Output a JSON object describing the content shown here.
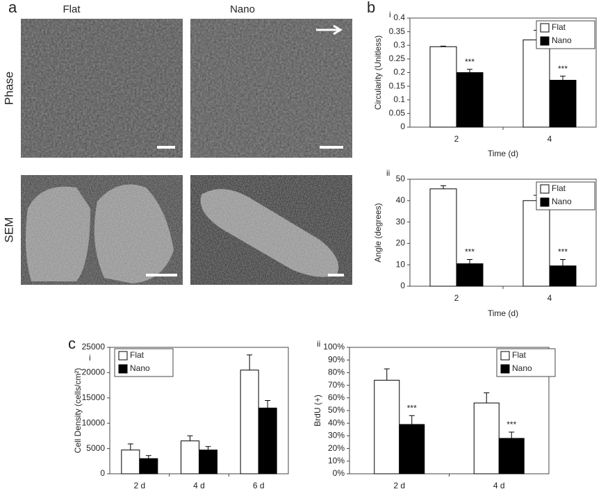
{
  "panel_labels": [
    "a",
    "b",
    "c"
  ],
  "image_columns": [
    "Flat",
    "Nano"
  ],
  "image_rows": [
    "Phase",
    "SEM"
  ],
  "chart_data": [
    {
      "type": "bar",
      "panel": "i",
      "ylabel": "Circularity (Unitless)",
      "xlabel": "Time (d)",
      "categories": [
        "2",
        "4"
      ],
      "ylim": [
        0,
        0.4
      ],
      "yticks": [
        0,
        0.05,
        0.1,
        0.15,
        0.2,
        0.25,
        0.3,
        0.35,
        0.4
      ],
      "series": [
        {
          "name": "Flat",
          "color": "#ffffff",
          "values": [
            0.295,
            0.32
          ],
          "errors": [
            0.002,
            0.035
          ]
        },
        {
          "name": "Nano",
          "color": "#000000",
          "values": [
            0.2,
            0.172
          ],
          "errors": [
            0.012,
            0.015
          ],
          "annotations": [
            "***",
            "***"
          ]
        }
      ]
    },
    {
      "type": "bar",
      "panel": "ii",
      "ylabel": "Angle (degrees)",
      "xlabel": "Time (d)",
      "categories": [
        "2",
        "4"
      ],
      "ylim": [
        0,
        50
      ],
      "yticks": [
        0,
        10,
        20,
        30,
        40,
        50
      ],
      "series": [
        {
          "name": "Flat",
          "color": "#ffffff",
          "values": [
            45.5,
            40
          ],
          "errors": [
            1.5,
            2.5
          ]
        },
        {
          "name": "Nano",
          "color": "#000000",
          "values": [
            10.5,
            9.5
          ],
          "errors": [
            2,
            3
          ],
          "annotations": [
            "***",
            "***"
          ]
        }
      ]
    },
    {
      "type": "bar",
      "panel": "i",
      "ylabel": "Cell Density (cells/cm²)",
      "categories": [
        "2 d",
        "4 d",
        "6 d"
      ],
      "ylim": [
        0,
        25000
      ],
      "yticks": [
        0,
        5000,
        10000,
        15000,
        20000,
        25000
      ],
      "series": [
        {
          "name": "Flat",
          "color": "#ffffff",
          "values": [
            4700,
            6500,
            20500
          ],
          "errors": [
            1200,
            1000,
            3000
          ]
        },
        {
          "name": "Nano",
          "color": "#000000",
          "values": [
            3000,
            4700,
            13000
          ],
          "errors": [
            600,
            700,
            1500
          ]
        }
      ]
    },
    {
      "type": "bar",
      "panel": "ii",
      "ylabel": "BrdU (+)",
      "categories": [
        "2 d",
        "4 d"
      ],
      "ylim": [
        0,
        100
      ],
      "yticks": [
        {
          "value": 0,
          "label": "0%"
        },
        {
          "value": 10,
          "label": "10%"
        },
        {
          "value": 20,
          "label": "20%"
        },
        {
          "value": 30,
          "label": "30%"
        },
        {
          "value": 40,
          "label": "40%"
        },
        {
          "value": 50,
          "label": "50%"
        },
        {
          "value": 60,
          "label": "60%"
        },
        {
          "value": 70,
          "label": "70%"
        },
        {
          "value": 80,
          "label": "80%"
        },
        {
          "value": 90,
          "label": "90%"
        },
        {
          "value": 100,
          "label": "100%"
        }
      ],
      "series": [
        {
          "name": "Flat",
          "color": "#ffffff",
          "values": [
            74,
            56
          ],
          "errors": [
            9,
            8
          ]
        },
        {
          "name": "Nano",
          "color": "#000000",
          "values": [
            39,
            28
          ],
          "errors": [
            7,
            5
          ],
          "annotations": [
            "***",
            "***"
          ]
        }
      ]
    }
  ]
}
